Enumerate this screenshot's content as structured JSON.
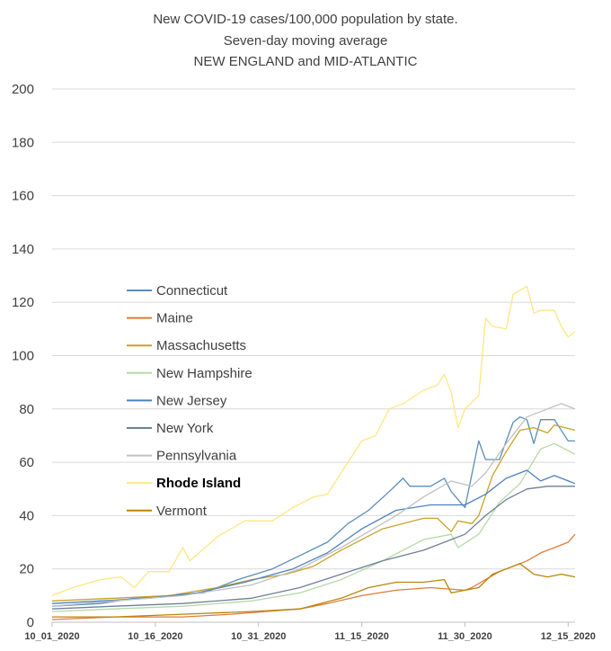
{
  "chart_data": {
    "type": "line",
    "title": [
      "New COVID-19 cases/100,000 population by state.",
      "Seven-day moving average",
      "NEW ENGLAND and MID-ATLANTIC"
    ],
    "xlabel": "",
    "ylabel": "",
    "ylim": [
      0,
      200
    ],
    "yticks": [
      0,
      20,
      40,
      60,
      80,
      100,
      120,
      140,
      160,
      180,
      200
    ],
    "x_start": "2020-10-01",
    "x_end": "2020-12-16",
    "xtick_labels": [
      "10_01_2020",
      "10_16_2020",
      "10_31_2020",
      "11_15_2020",
      "11_30_2020",
      "12_15_2020"
    ],
    "grid": "horizontal",
    "legend_position": "left-middle",
    "series": [
      {
        "name": "Connecticut",
        "color": "#5b8db8",
        "bold": false,
        "points": [
          [
            "2020-10-01",
            6
          ],
          [
            "2020-10-08",
            7
          ],
          [
            "2020-10-13",
            9
          ],
          [
            "2020-10-18",
            10
          ],
          [
            "2020-10-23",
            11
          ],
          [
            "2020-10-28",
            16
          ],
          [
            "2020-11-02",
            20
          ],
          [
            "2020-11-06",
            25
          ],
          [
            "2020-11-10",
            30
          ],
          [
            "2020-11-13",
            37
          ],
          [
            "2020-11-16",
            42
          ],
          [
            "2020-11-19",
            49
          ],
          [
            "2020-11-21",
            54
          ],
          [
            "2020-11-22",
            51
          ],
          [
            "2020-11-25",
            51
          ],
          [
            "2020-11-27",
            54
          ],
          [
            "2020-11-28",
            49
          ],
          [
            "2020-11-30",
            43
          ],
          [
            "2020-12-02",
            68
          ],
          [
            "2020-12-03",
            61
          ],
          [
            "2020-12-05",
            61
          ],
          [
            "2020-12-07",
            75
          ],
          [
            "2020-12-08",
            77
          ],
          [
            "2020-12-09",
            76
          ],
          [
            "2020-12-10",
            67
          ],
          [
            "2020-12-11",
            76
          ],
          [
            "2020-12-13",
            76
          ],
          [
            "2020-12-15",
            68
          ],
          [
            "2020-12-16",
            68
          ]
        ]
      },
      {
        "name": "Maine",
        "color": "#e07b39",
        "bold": false,
        "points": [
          [
            "2020-10-01",
            1
          ],
          [
            "2020-10-10",
            2
          ],
          [
            "2020-10-20",
            2
          ],
          [
            "2020-10-27",
            3
          ],
          [
            "2020-11-01",
            4
          ],
          [
            "2020-11-06",
            5
          ],
          [
            "2020-11-10",
            7
          ],
          [
            "2020-11-15",
            10
          ],
          [
            "2020-11-20",
            12
          ],
          [
            "2020-11-25",
            13
          ],
          [
            "2020-11-30",
            12
          ],
          [
            "2020-12-01",
            13
          ],
          [
            "2020-12-03",
            16
          ],
          [
            "2020-12-05",
            19
          ],
          [
            "2020-12-07",
            21
          ],
          [
            "2020-12-09",
            23
          ],
          [
            "2020-12-11",
            26
          ],
          [
            "2020-12-13",
            28
          ],
          [
            "2020-12-15",
            30
          ],
          [
            "2020-12-16",
            33
          ]
        ]
      },
      {
        "name": "Massachusetts",
        "color": "#c9a227",
        "bold": false,
        "points": [
          [
            "2020-10-01",
            8
          ],
          [
            "2020-10-10",
            9
          ],
          [
            "2020-10-18",
            10
          ],
          [
            "2020-10-25",
            13
          ],
          [
            "2020-10-30",
            16
          ],
          [
            "2020-11-04",
            18
          ],
          [
            "2020-11-08",
            21
          ],
          [
            "2020-11-12",
            27
          ],
          [
            "2020-11-15",
            31
          ],
          [
            "2020-11-18",
            35
          ],
          [
            "2020-11-21",
            37
          ],
          [
            "2020-11-24",
            39
          ],
          [
            "2020-11-26",
            39
          ],
          [
            "2020-11-28",
            34
          ],
          [
            "2020-11-29",
            38
          ],
          [
            "2020-12-01",
            37
          ],
          [
            "2020-12-02",
            40
          ],
          [
            "2020-12-04",
            55
          ],
          [
            "2020-12-06",
            64
          ],
          [
            "2020-12-08",
            72
          ],
          [
            "2020-12-10",
            73
          ],
          [
            "2020-12-12",
            71
          ],
          [
            "2020-12-13",
            74
          ],
          [
            "2020-12-16",
            72
          ]
        ]
      },
      {
        "name": "New Hampshire",
        "color": "#b6d7a8",
        "bold": false,
        "points": [
          [
            "2020-10-01",
            4
          ],
          [
            "2020-10-10",
            5
          ],
          [
            "2020-10-20",
            6
          ],
          [
            "2020-10-30",
            8
          ],
          [
            "2020-11-06",
            11
          ],
          [
            "2020-11-12",
            16
          ],
          [
            "2020-11-18",
            23
          ],
          [
            "2020-11-24",
            31
          ],
          [
            "2020-11-28",
            33
          ],
          [
            "2020-11-29",
            28
          ],
          [
            "2020-12-02",
            33
          ],
          [
            "2020-12-05",
            45
          ],
          [
            "2020-12-08",
            52
          ],
          [
            "2020-12-11",
            65
          ],
          [
            "2020-12-13",
            67
          ],
          [
            "2020-12-16",
            63
          ]
        ]
      },
      {
        "name": "New Jersey",
        "color": "#4e81bd",
        "bold": false,
        "points": [
          [
            "2020-10-01",
            7
          ],
          [
            "2020-10-08",
            8
          ],
          [
            "2020-10-15",
            9
          ],
          [
            "2020-10-22",
            11
          ],
          [
            "2020-10-29",
            15
          ],
          [
            "2020-11-05",
            20
          ],
          [
            "2020-11-10",
            26
          ],
          [
            "2020-11-15",
            35
          ],
          [
            "2020-11-20",
            42
          ],
          [
            "2020-11-25",
            44
          ],
          [
            "2020-11-30",
            44
          ],
          [
            "2020-12-03",
            48
          ],
          [
            "2020-12-06",
            54
          ],
          [
            "2020-12-09",
            57
          ],
          [
            "2020-12-11",
            53
          ],
          [
            "2020-12-13",
            55
          ],
          [
            "2020-12-16",
            52
          ]
        ]
      },
      {
        "name": "New York",
        "color": "#6e7f95",
        "bold": false,
        "points": [
          [
            "2020-10-01",
            5
          ],
          [
            "2020-10-10",
            6
          ],
          [
            "2020-10-20",
            7
          ],
          [
            "2020-10-30",
            9
          ],
          [
            "2020-11-06",
            13
          ],
          [
            "2020-11-12",
            18
          ],
          [
            "2020-11-18",
            23
          ],
          [
            "2020-11-24",
            27
          ],
          [
            "2020-11-30",
            33
          ],
          [
            "2020-12-03",
            40
          ],
          [
            "2020-12-06",
            46
          ],
          [
            "2020-12-09",
            50
          ],
          [
            "2020-12-12",
            51
          ],
          [
            "2020-12-16",
            51
          ]
        ]
      },
      {
        "name": "Pennsylvania",
        "color": "#c0c0c0",
        "bold": false,
        "points": [
          [
            "2020-10-01",
            6
          ],
          [
            "2020-10-10",
            8
          ],
          [
            "2020-10-20",
            10
          ],
          [
            "2020-10-30",
            14
          ],
          [
            "2020-11-06",
            20
          ],
          [
            "2020-11-12",
            28
          ],
          [
            "2020-11-16",
            34
          ],
          [
            "2020-11-20",
            40
          ],
          [
            "2020-11-24",
            47
          ],
          [
            "2020-11-28",
            53
          ],
          [
            "2020-12-01",
            51
          ],
          [
            "2020-12-03",
            56
          ],
          [
            "2020-12-06",
            67
          ],
          [
            "2020-12-09",
            77
          ],
          [
            "2020-12-12",
            80
          ],
          [
            "2020-12-14",
            82
          ],
          [
            "2020-12-16",
            80
          ]
        ]
      },
      {
        "name": "Rhode Island",
        "color": "#ffe680",
        "bold": true,
        "points": [
          [
            "2020-10-01",
            10
          ],
          [
            "2020-10-04",
            13
          ],
          [
            "2020-10-08",
            16
          ],
          [
            "2020-10-11",
            17
          ],
          [
            "2020-10-13",
            13
          ],
          [
            "2020-10-15",
            19
          ],
          [
            "2020-10-18",
            19
          ],
          [
            "2020-10-20",
            28
          ],
          [
            "2020-10-21",
            23
          ],
          [
            "2020-10-25",
            32
          ],
          [
            "2020-10-29",
            38
          ],
          [
            "2020-11-02",
            38
          ],
          [
            "2020-11-05",
            43
          ],
          [
            "2020-11-08",
            47
          ],
          [
            "2020-11-10",
            48
          ],
          [
            "2020-11-13",
            60
          ],
          [
            "2020-11-15",
            68
          ],
          [
            "2020-11-17",
            70
          ],
          [
            "2020-11-19",
            80
          ],
          [
            "2020-11-21",
            82
          ],
          [
            "2020-11-24",
            87
          ],
          [
            "2020-11-26",
            89
          ],
          [
            "2020-11-27",
            93
          ],
          [
            "2020-11-28",
            86
          ],
          [
            "2020-11-29",
            73
          ],
          [
            "2020-11-30",
            80
          ],
          [
            "2020-12-02",
            85
          ],
          [
            "2020-12-03",
            114
          ],
          [
            "2020-12-04",
            111
          ],
          [
            "2020-12-06",
            110
          ],
          [
            "2020-12-07",
            123
          ],
          [
            "2020-12-09",
            126
          ],
          [
            "2020-12-10",
            116
          ],
          [
            "2020-12-11",
            117
          ],
          [
            "2020-12-13",
            117
          ],
          [
            "2020-12-14",
            111
          ],
          [
            "2020-12-15",
            107
          ],
          [
            "2020-12-16",
            109
          ]
        ]
      },
      {
        "name": "Vermont",
        "color": "#b8860b",
        "bold": false,
        "points": [
          [
            "2020-10-01",
            2
          ],
          [
            "2020-10-10",
            2
          ],
          [
            "2020-10-20",
            3
          ],
          [
            "2020-10-30",
            4
          ],
          [
            "2020-11-06",
            5
          ],
          [
            "2020-11-12",
            9
          ],
          [
            "2020-11-16",
            13
          ],
          [
            "2020-11-20",
            15
          ],
          [
            "2020-11-24",
            15
          ],
          [
            "2020-11-27",
            16
          ],
          [
            "2020-11-28",
            11
          ],
          [
            "2020-11-30",
            12
          ],
          [
            "2020-12-02",
            13
          ],
          [
            "2020-12-04",
            18
          ],
          [
            "2020-12-06",
            20
          ],
          [
            "2020-12-08",
            22
          ],
          [
            "2020-12-10",
            18
          ],
          [
            "2020-12-12",
            17
          ],
          [
            "2020-12-14",
            18
          ],
          [
            "2020-12-16",
            17
          ]
        ]
      }
    ]
  }
}
